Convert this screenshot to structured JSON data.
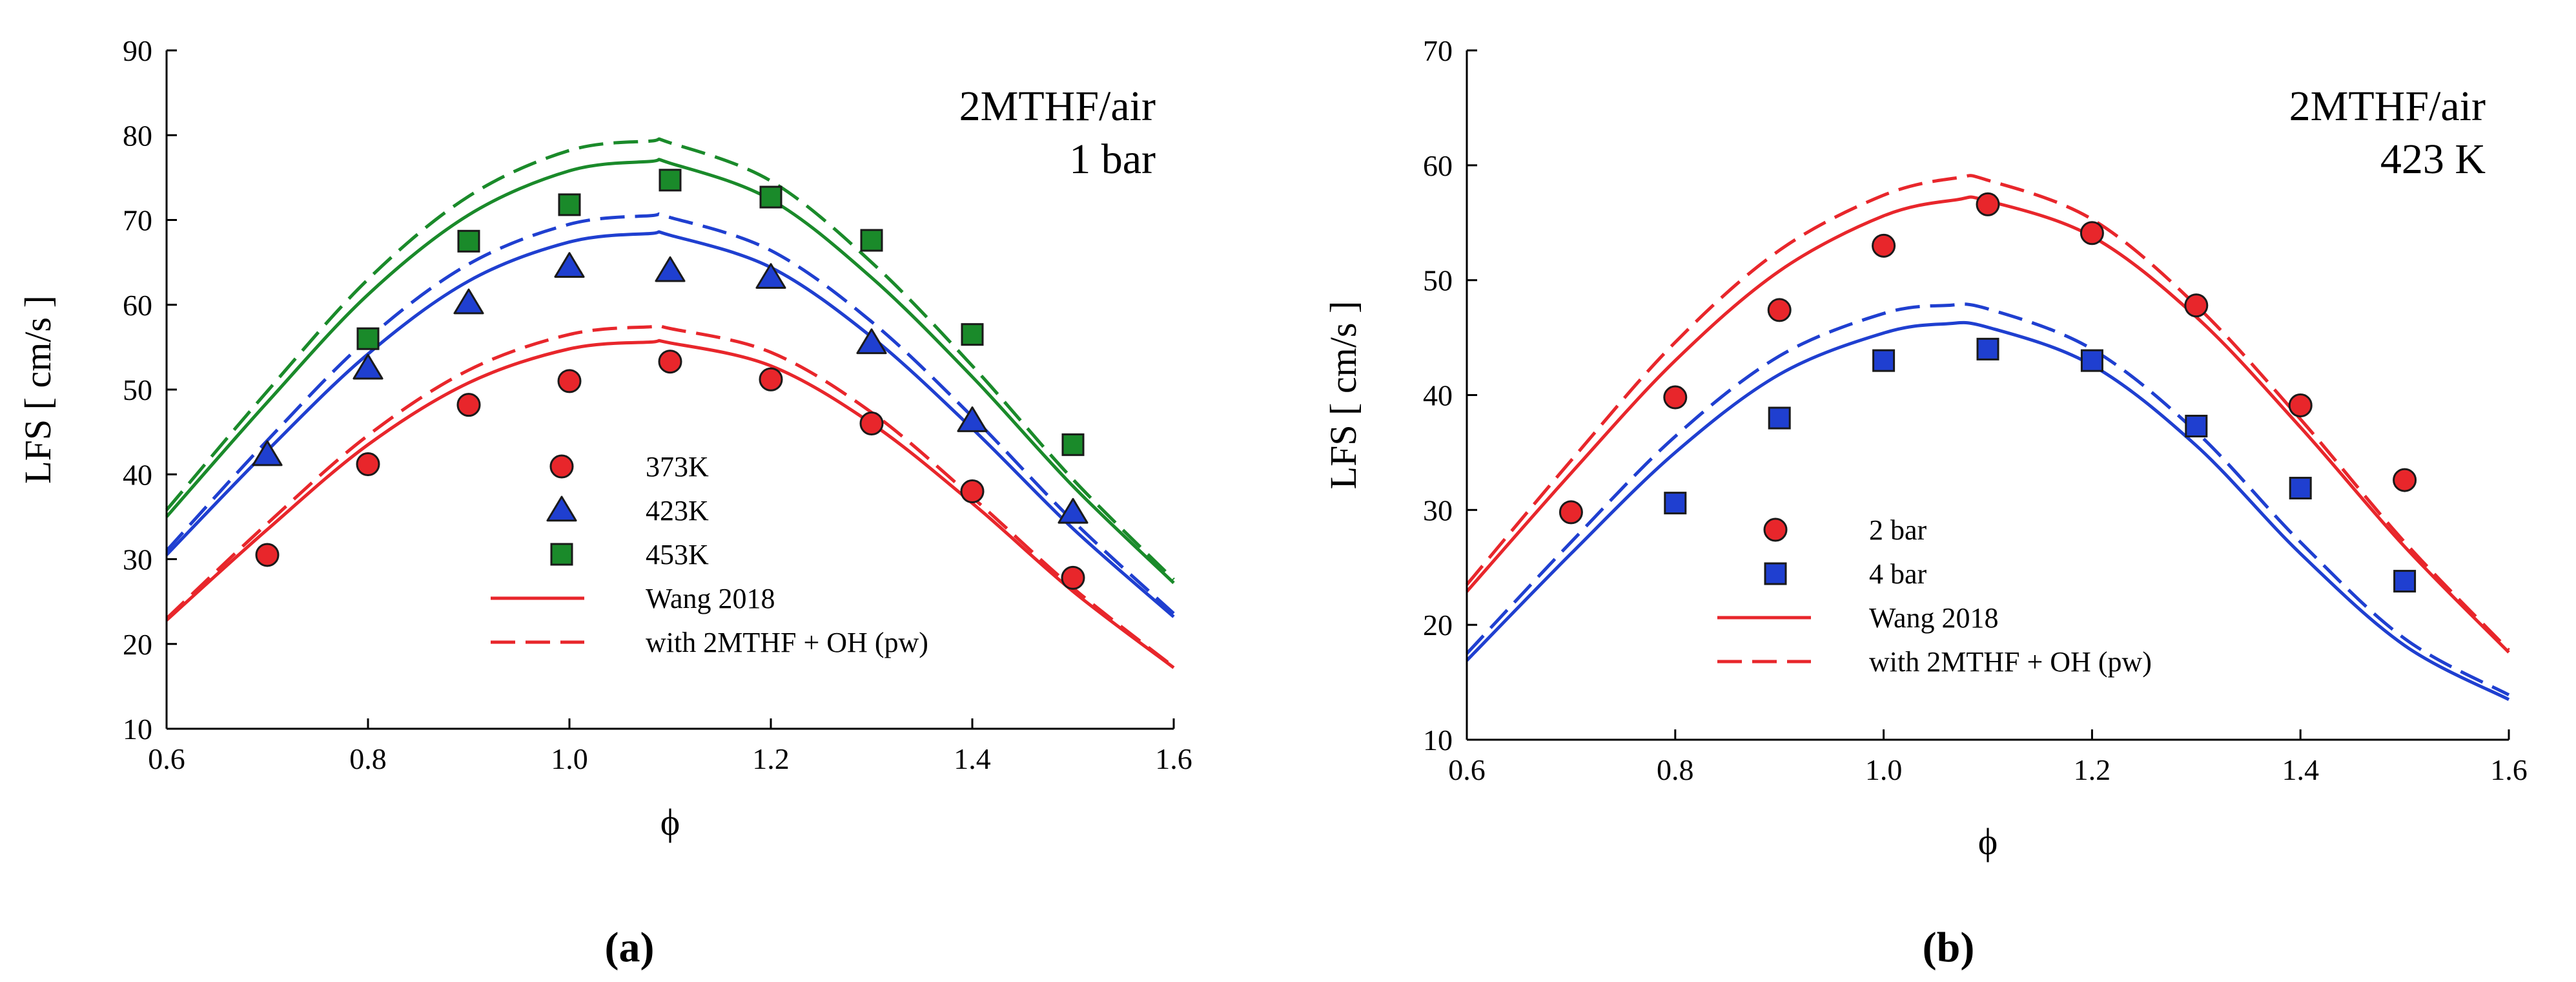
{
  "colors": {
    "red": "#e8262b",
    "blue": "#1f3fd0",
    "green": "#1a8a2a",
    "marker_edge": "#1a1a1a",
    "axis": "#000000"
  },
  "chart_data": [
    {
      "id": "a",
      "type": "scatter",
      "caption": "(a)",
      "xlabel": "ϕ",
      "ylabel": "LFS [ cm/s ]",
      "xlim": [
        0.6,
        1.6
      ],
      "ylim": [
        10,
        90
      ],
      "xticks": [
        0.6,
        0.8,
        1.0,
        1.2,
        1.4,
        1.6
      ],
      "xtick_labels": [
        "0.6",
        "0.8",
        "1.0",
        "1.2",
        "1.4",
        "1.6"
      ],
      "yticks": [
        10,
        20,
        30,
        40,
        50,
        60,
        70,
        80,
        90
      ],
      "ytick_labels": [
        "10",
        "20",
        "30",
        "40",
        "50",
        "60",
        "70",
        "80",
        "90"
      ],
      "annotation": [
        "2MTHF/air",
        "1 bar"
      ],
      "legend_placement": "lower-center",
      "legend": [
        {
          "label": "373K",
          "kind": "marker",
          "marker": "circle",
          "color": "red"
        },
        {
          "label": "423K",
          "kind": "marker",
          "marker": "triangle",
          "color": "blue"
        },
        {
          "label": "453K",
          "kind": "marker",
          "marker": "square",
          "color": "green"
        },
        {
          "label": "Wang 2018",
          "kind": "line",
          "dash": "solid",
          "color": "red"
        },
        {
          "label": "with 2MTHF + OH (pw)",
          "kind": "line",
          "dash": "dashed",
          "color": "red"
        }
      ],
      "scatter_series": [
        {
          "name": "373K",
          "marker": "circle",
          "color": "red",
          "x": [
            0.7,
            0.8,
            0.9,
            1.0,
            1.1,
            1.2,
            1.3,
            1.4,
            1.5
          ],
          "y": [
            30.5,
            41.2,
            48.2,
            51.0,
            53.3,
            51.2,
            46.0,
            38.0,
            27.8
          ]
        },
        {
          "name": "423K",
          "marker": "triangle",
          "color": "blue",
          "x": [
            0.7,
            0.8,
            0.9,
            1.0,
            1.1,
            1.2,
            1.3,
            1.4,
            1.5
          ],
          "y": [
            42.3,
            52.5,
            60.2,
            64.5,
            64.0,
            63.2,
            55.5,
            46.3,
            35.5
          ]
        },
        {
          "name": "453K",
          "marker": "square",
          "color": "green",
          "x": [
            0.8,
            0.9,
            1.0,
            1.1,
            1.2,
            1.3,
            1.4,
            1.5
          ],
          "y": [
            56.0,
            67.5,
            71.8,
            74.7,
            72.7,
            67.6,
            56.5,
            43.5
          ]
        }
      ],
      "line_series": [
        {
          "name": "Wang 2018 373K",
          "color": "red",
          "dash": "solid",
          "x": [
            0.6,
            0.7,
            0.8,
            0.9,
            1.0,
            1.08,
            1.1,
            1.2,
            1.3,
            1.4,
            1.5,
            1.6
          ],
          "y": [
            22.8,
            33.5,
            43.5,
            50.8,
            54.8,
            55.6,
            55.5,
            52.8,
            46.0,
            36.6,
            26.2,
            17.2
          ]
        },
        {
          "name": "with 2MTHF + OH (pw) 373K",
          "color": "red",
          "dash": "dashed",
          "x": [
            0.6,
            0.7,
            0.8,
            0.9,
            1.0,
            1.08,
            1.1,
            1.2,
            1.3,
            1.4,
            1.5,
            1.6
          ],
          "y": [
            23.0,
            34.2,
            44.6,
            52.3,
            56.5,
            57.4,
            57.2,
            54.4,
            47.3,
            37.3,
            26.6,
            17.3
          ]
        },
        {
          "name": "Wang 2018 423K",
          "color": "blue",
          "dash": "solid",
          "x": [
            0.6,
            0.7,
            0.8,
            0.9,
            1.0,
            1.08,
            1.1,
            1.2,
            1.3,
            1.4,
            1.5,
            1.6
          ],
          "y": [
            30.5,
            42.8,
            54.2,
            62.8,
            67.4,
            68.4,
            68.2,
            64.4,
            56.2,
            45.4,
            33.6,
            23.2
          ]
        },
        {
          "name": "with 2MTHF + OH (pw) 423K",
          "color": "blue",
          "dash": "dashed",
          "x": [
            0.6,
            0.7,
            0.8,
            0.9,
            1.0,
            1.08,
            1.1,
            1.2,
            1.3,
            1.4,
            1.5,
            1.6
          ],
          "y": [
            31.0,
            44.0,
            56.0,
            64.8,
            69.5,
            70.5,
            70.3,
            66.4,
            58.0,
            46.8,
            34.5,
            23.6
          ]
        },
        {
          "name": "Wang 2018 453K",
          "color": "green",
          "dash": "solid",
          "x": [
            0.6,
            0.7,
            0.8,
            0.9,
            1.0,
            1.08,
            1.1,
            1.2,
            1.3,
            1.4,
            1.5,
            1.6
          ],
          "y": [
            35.0,
            48.5,
            61.2,
            70.6,
            75.8,
            76.9,
            76.7,
            72.4,
            63.2,
            51.5,
            38.6,
            27.2
          ]
        },
        {
          "name": "with 2MTHF + OH (pw) 453K",
          "color": "green",
          "dash": "dashed",
          "x": [
            0.6,
            0.7,
            0.8,
            0.9,
            1.0,
            1.08,
            1.1,
            1.2,
            1.3,
            1.4,
            1.5,
            1.6
          ],
          "y": [
            35.8,
            49.8,
            63.0,
            72.8,
            78.2,
            79.3,
            79.1,
            74.6,
            65.0,
            52.8,
            39.4,
            27.6
          ]
        }
      ]
    },
    {
      "id": "b",
      "type": "scatter",
      "caption": "(b)",
      "xlabel": "ϕ",
      "ylabel": "LFS [ cm/s ]",
      "xlim": [
        0.6,
        1.6
      ],
      "ylim": [
        10,
        70
      ],
      "xticks": [
        0.6,
        0.8,
        1.0,
        1.2,
        1.4,
        1.6
      ],
      "xtick_labels": [
        "0.6",
        "0.8",
        "1.0",
        "1.2",
        "1.4",
        "1.6"
      ],
      "yticks": [
        10,
        20,
        30,
        40,
        50,
        60,
        70
      ],
      "ytick_labels": [
        "10",
        "20",
        "30",
        "40",
        "50",
        "60",
        "70"
      ],
      "annotation": [
        "2MTHF/air",
        "423 K"
      ],
      "legend_placement": "lower-left",
      "legend": [
        {
          "label": "2 bar",
          "kind": "marker",
          "marker": "circle",
          "color": "red"
        },
        {
          "label": "4 bar",
          "kind": "marker",
          "marker": "square",
          "color": "blue"
        },
        {
          "label": "Wang 2018",
          "kind": "line",
          "dash": "solid",
          "color": "red"
        },
        {
          "label": "with 2MTHF + OH (pw)",
          "kind": "line",
          "dash": "dashed",
          "color": "red"
        }
      ],
      "scatter_series": [
        {
          "name": "2 bar",
          "marker": "circle",
          "color": "red",
          "x": [
            0.7,
            0.8,
            0.9,
            1.0,
            1.1,
            1.2,
            1.3,
            1.4,
            1.5
          ],
          "y": [
            29.8,
            39.8,
            47.4,
            53.0,
            56.6,
            54.1,
            47.8,
            39.1,
            32.6
          ]
        },
        {
          "name": "4 bar",
          "marker": "square",
          "color": "blue",
          "x": [
            0.8,
            0.9,
            1.0,
            1.1,
            1.2,
            1.3,
            1.4,
            1.5
          ],
          "y": [
            30.6,
            38.0,
            43.0,
            44.0,
            43.0,
            37.3,
            31.9,
            23.8
          ]
        }
      ],
      "line_series": [
        {
          "name": "Wang 2018 2 bar",
          "color": "red",
          "dash": "solid",
          "x": [
            0.6,
            0.7,
            0.8,
            0.9,
            1.0,
            1.07,
            1.1,
            1.2,
            1.3,
            1.4,
            1.5,
            1.6
          ],
          "y": [
            22.9,
            33.2,
            43.0,
            50.8,
            55.6,
            57.0,
            56.9,
            53.8,
            46.8,
            37.2,
            26.8,
            17.6
          ]
        },
        {
          "name": "with 2MTHF + OH (pw) 2 bar",
          "color": "red",
          "dash": "dashed",
          "x": [
            0.6,
            0.7,
            0.8,
            0.9,
            1.0,
            1.07,
            1.1,
            1.2,
            1.3,
            1.4,
            1.5,
            1.6
          ],
          "y": [
            23.5,
            34.3,
            44.6,
            52.6,
            57.4,
            58.9,
            58.7,
            55.3,
            47.8,
            37.9,
            27.2,
            17.8
          ]
        },
        {
          "name": "Wang 2018 4 bar",
          "color": "blue",
          "dash": "solid",
          "x": [
            0.6,
            0.7,
            0.8,
            0.9,
            1.0,
            1.06,
            1.1,
            1.2,
            1.3,
            1.4,
            1.5,
            1.6
          ],
          "y": [
            16.9,
            26.2,
            35.0,
            41.8,
            45.4,
            46.2,
            45.9,
            42.6,
            35.6,
            26.2,
            18.2,
            13.5
          ]
        },
        {
          "name": "with 2MTHF + OH (pw) 4 bar",
          "color": "blue",
          "dash": "dashed",
          "x": [
            0.6,
            0.7,
            0.8,
            0.9,
            1.0,
            1.06,
            1.1,
            1.2,
            1.3,
            1.4,
            1.5,
            1.6
          ],
          "y": [
            17.5,
            27.2,
            36.4,
            43.4,
            47.1,
            47.8,
            47.5,
            44.0,
            36.8,
            27.2,
            18.8,
            13.9
          ]
        }
      ]
    }
  ]
}
